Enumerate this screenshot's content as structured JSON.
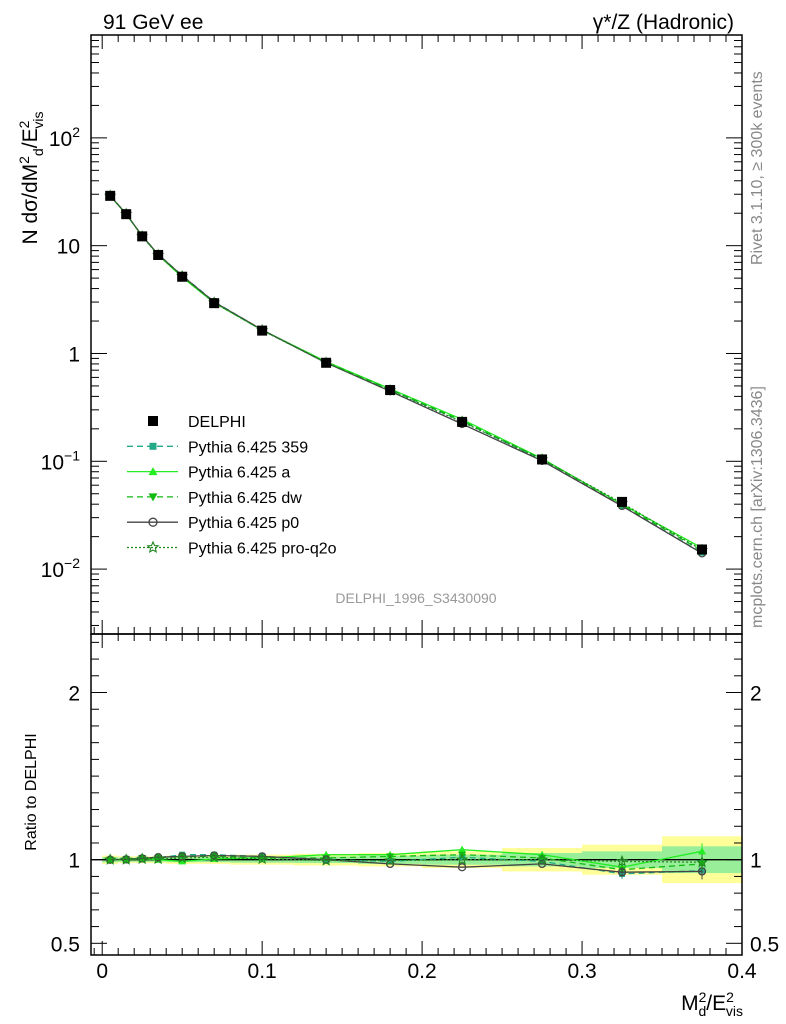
{
  "header": {
    "left": "91 GeV ee",
    "right": "γ*/Z (Hadronic)"
  },
  "side": {
    "rivet": "Rivet 3.1.10, ≥ 300k events",
    "mcplots": "mcplots.cern.ch [arXiv:1306.3436]"
  },
  "analysis_id": "DELPHI_1996_S3430090",
  "colors": {
    "data": "#000000",
    "p359": "#22aa88",
    "a": "#22ee22",
    "dw": "#11bb11",
    "p0": "#444444",
    "proq2o": "#228822",
    "band_outer": "#ffff99",
    "band_inner": "#99ee99"
  },
  "chart_data": [
    {
      "type": "line",
      "panel": "main",
      "ylabel": "N dσ/dM_d^2/E_vis^2",
      "yscale": "log",
      "ylim": [
        0.0025,
        900
      ],
      "xlim": [
        -0.007,
        0.4
      ],
      "y_ticks": [
        {
          "v": 100,
          "base": "10",
          "exp": "2"
        },
        {
          "v": 10,
          "base": "10",
          "exp": ""
        },
        {
          "v": 1,
          "base": "1",
          "exp": ""
        },
        {
          "v": 0.1,
          "base": "10",
          "exp": "−1"
        },
        {
          "v": 0.01,
          "base": "10",
          "exp": "−2"
        }
      ],
      "x": [
        0.005,
        0.015,
        0.025,
        0.035,
        0.05,
        0.07,
        0.1,
        0.14,
        0.18,
        0.225,
        0.275,
        0.325,
        0.375
      ],
      "data": {
        "name": "DELPHI",
        "values": [
          29.0,
          19.6,
          12.2,
          8.2,
          5.15,
          2.93,
          1.63,
          0.82,
          0.458,
          0.232,
          0.104,
          0.042,
          0.0152
        ]
      },
      "series": [
        {
          "name": "Pythia 6.425 359",
          "key": "p359",
          "marker": "square",
          "dash": "6,4",
          "values": [
            29.0,
            19.7,
            12.3,
            8.3,
            5.3,
            3.02,
            1.66,
            0.82,
            0.46,
            0.235,
            0.103,
            0.0385,
            0.0142
          ]
        },
        {
          "name": "Pythia 6.425 a",
          "key": "a",
          "marker": "triangle-up",
          "dash": "",
          "values": [
            29.0,
            19.6,
            12.3,
            8.2,
            5.1,
            2.95,
            1.65,
            0.84,
            0.47,
            0.245,
            0.106,
            0.04,
            0.0157
          ]
        },
        {
          "name": "Pythia 6.425 dw",
          "key": "dw",
          "marker": "triangle-down",
          "dash": "6,4",
          "values": [
            29.0,
            19.7,
            12.3,
            8.3,
            5.2,
            2.98,
            1.64,
            0.83,
            0.465,
            0.238,
            0.105,
            0.0395,
            0.0148
          ]
        },
        {
          "name": "Pythia 6.425 p0",
          "key": "p0",
          "marker": "circle-open",
          "dash": "",
          "values": [
            29.0,
            19.7,
            12.3,
            8.3,
            5.25,
            3.0,
            1.66,
            0.82,
            0.447,
            0.222,
            0.101,
            0.0385,
            0.014
          ]
        },
        {
          "name": "Pythia 6.425 pro-q2o",
          "key": "proq2o",
          "marker": "star-open",
          "dash": "2,2",
          "values": [
            29.0,
            19.7,
            12.2,
            8.2,
            5.2,
            2.96,
            1.64,
            0.82,
            0.455,
            0.232,
            0.104,
            0.041,
            0.015
          ]
        }
      ],
      "legend": "middle-left"
    },
    {
      "type": "line",
      "panel": "ratio",
      "xlabel": "M_d^2/E_vis^2",
      "ylabel": "Ratio to DELPHI",
      "ylim": [
        0.43,
        2.35
      ],
      "y_ticks": [
        2,
        1,
        0.5
      ],
      "x_ticks": [
        0,
        0.1,
        0.2,
        0.3,
        0.4
      ],
      "bins": [
        [
          0,
          0.01
        ],
        [
          0.01,
          0.02
        ],
        [
          0.02,
          0.03
        ],
        [
          0.03,
          0.04
        ],
        [
          0.04,
          0.06
        ],
        [
          0.06,
          0.08
        ],
        [
          0.08,
          0.12
        ],
        [
          0.12,
          0.16
        ],
        [
          0.16,
          0.2
        ],
        [
          0.2,
          0.25
        ],
        [
          0.25,
          0.3
        ],
        [
          0.3,
          0.35
        ],
        [
          0.35,
          0.4
        ]
      ],
      "band_outer": [
        0.025,
        0.02,
        0.02,
        0.02,
        0.025,
        0.025,
        0.03,
        0.035,
        0.04,
        0.05,
        0.07,
        0.09,
        0.14
      ],
      "band_inner": [
        0.015,
        0.012,
        0.012,
        0.012,
        0.015,
        0.015,
        0.018,
        0.02,
        0.025,
        0.03,
        0.04,
        0.05,
        0.08
      ],
      "series": [
        {
          "key": "p359",
          "values": [
            1.0,
            1.005,
            1.008,
            1.012,
            1.03,
            1.03,
            1.02,
            1.0,
            0.99,
            1.015,
            0.99,
            0.915,
            0.935
          ]
        },
        {
          "key": "a",
          "values": [
            1.0,
            1.0,
            1.005,
            1.0,
            0.99,
            1.005,
            1.01,
            1.03,
            1.03,
            1.06,
            1.03,
            0.955,
            1.05
          ]
        },
        {
          "key": "dw",
          "values": [
            1.0,
            1.002,
            1.01,
            1.01,
            1.02,
            1.02,
            1.01,
            1.01,
            1.02,
            1.03,
            1.01,
            0.94,
            0.975
          ]
        },
        {
          "key": "p0",
          "values": [
            1.0,
            1.002,
            1.008,
            1.015,
            1.02,
            1.025,
            1.02,
            1.0,
            0.975,
            0.955,
            0.975,
            0.925,
            0.93
          ]
        },
        {
          "key": "proq2o",
          "values": [
            1.0,
            1.0,
            1.005,
            1.005,
            1.01,
            1.015,
            1.005,
            0.995,
            0.995,
            1.0,
            1.0,
            0.99,
            0.985
          ]
        }
      ]
    }
  ]
}
